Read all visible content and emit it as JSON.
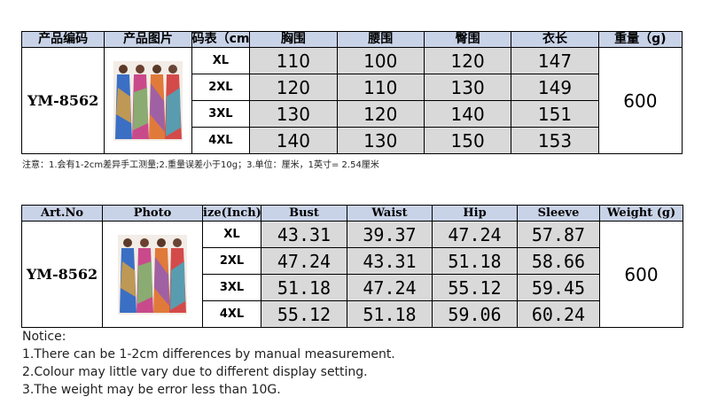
{
  "table_cn": {
    "headers": [
      "产品编码",
      "产品图片",
      "码表（cm",
      "胸围",
      "腰围",
      "臀围",
      "衣长",
      "重量（g)"
    ],
    "art_no": "YM-8562",
    "weight": "600",
    "rows": [
      {
        "size": "XL",
        "values": [
          "110",
          "100",
          "120",
          "147"
        ]
      },
      {
        "size": "2XL",
        "values": [
          "120",
          "110",
          "130",
          "149"
        ]
      },
      {
        "size": "3XL",
        "values": [
          "130",
          "120",
          "140",
          "151"
        ]
      },
      {
        "size": "4XL",
        "values": [
          "140",
          "130",
          "150",
          "153"
        ]
      }
    ]
  },
  "note_cn": "注意：1.会有1-2cm差异手工测量;2.重量误差小于10g；3.单位：厘米，1英寸= 2.54厘米",
  "table_en": {
    "headers": [
      "Art.No",
      "Photo",
      "ize(Inch)",
      "Bust",
      "Waist",
      "Hip",
      "Sleeve",
      "Weight (g)"
    ],
    "art_no": "YM-8562",
    "weight": "600",
    "rows": [
      {
        "size": "XL",
        "values": [
          "43.31",
          "39.37",
          "47.24",
          "57.87"
        ]
      },
      {
        "size": "2XL",
        "values": [
          "47.24",
          "43.31",
          "51.18",
          "58.66"
        ]
      },
      {
        "size": "3XL",
        "values": [
          "51.18",
          "47.24",
          "55.12",
          "59.45"
        ]
      },
      {
        "size": "4XL",
        "values": [
          "55.12",
          "51.18",
          "59.06",
          "60.24"
        ]
      }
    ]
  },
  "notice": {
    "title": "Notice:",
    "lines": [
      "1.There can be 1-2cm differences by manual measurement.",
      "2.Colour may little vary due to different display setting.",
      "3.The weight may be error less than 10G."
    ]
  }
}
